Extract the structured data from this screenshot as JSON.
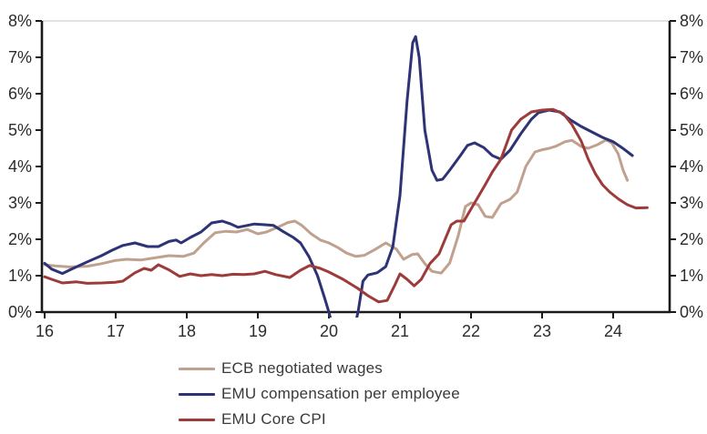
{
  "chart_data": {
    "type": "line",
    "title": "",
    "x_axis": {
      "ticks": [
        "16",
        "17",
        "18",
        "19",
        "20",
        "21",
        "22",
        "23",
        "24"
      ],
      "tick_values": [
        16,
        17,
        18,
        19,
        20,
        21,
        22,
        23,
        24
      ],
      "range": [
        16,
        24.85
      ]
    },
    "y_axis": {
      "labels": [
        "0%",
        "1%",
        "2%",
        "3%",
        "4%",
        "5%",
        "6%",
        "7%",
        "8%"
      ],
      "range": [
        0,
        8
      ],
      "step": 1,
      "unit": "%",
      "shown_on": "both-sides"
    },
    "grid": {
      "horizontal_top_line_only": true
    },
    "legend_position": "bottom-left",
    "series": [
      {
        "name": "ECB negotiated wages",
        "color": "#c0a18e",
        "points": [
          [
            16.0,
            1.3
          ],
          [
            16.15,
            1.27
          ],
          [
            16.35,
            1.24
          ],
          [
            16.6,
            1.26
          ],
          [
            16.8,
            1.33
          ],
          [
            17.0,
            1.42
          ],
          [
            17.15,
            1.45
          ],
          [
            17.35,
            1.43
          ],
          [
            17.55,
            1.49
          ],
          [
            17.75,
            1.55
          ],
          [
            17.95,
            1.53
          ],
          [
            18.1,
            1.62
          ],
          [
            18.25,
            1.92
          ],
          [
            18.4,
            2.18
          ],
          [
            18.55,
            2.22
          ],
          [
            18.7,
            2.2
          ],
          [
            18.85,
            2.27
          ],
          [
            19.0,
            2.15
          ],
          [
            19.12,
            2.2
          ],
          [
            19.28,
            2.33
          ],
          [
            19.42,
            2.46
          ],
          [
            19.52,
            2.5
          ],
          [
            19.62,
            2.38
          ],
          [
            19.75,
            2.15
          ],
          [
            19.88,
            1.98
          ],
          [
            20.0,
            1.9
          ],
          [
            20.12,
            1.78
          ],
          [
            20.25,
            1.62
          ],
          [
            20.38,
            1.53
          ],
          [
            20.5,
            1.56
          ],
          [
            20.65,
            1.72
          ],
          [
            20.8,
            1.9
          ],
          [
            20.95,
            1.73
          ],
          [
            21.05,
            1.45
          ],
          [
            21.17,
            1.58
          ],
          [
            21.25,
            1.6
          ],
          [
            21.35,
            1.33
          ],
          [
            21.45,
            1.12
          ],
          [
            21.58,
            1.07
          ],
          [
            21.7,
            1.35
          ],
          [
            21.82,
            2.1
          ],
          [
            21.92,
            2.9
          ],
          [
            22.0,
            3.0
          ],
          [
            22.1,
            2.95
          ],
          [
            22.2,
            2.63
          ],
          [
            22.3,
            2.6
          ],
          [
            22.42,
            2.98
          ],
          [
            22.55,
            3.1
          ],
          [
            22.65,
            3.3
          ],
          [
            22.77,
            4.0
          ],
          [
            22.9,
            4.4
          ],
          [
            23.0,
            4.46
          ],
          [
            23.1,
            4.5
          ],
          [
            23.2,
            4.56
          ],
          [
            23.32,
            4.68
          ],
          [
            23.42,
            4.72
          ],
          [
            23.55,
            4.55
          ],
          [
            23.65,
            4.5
          ],
          [
            23.78,
            4.6
          ],
          [
            23.9,
            4.73
          ],
          [
            23.98,
            4.65
          ],
          [
            24.07,
            4.35
          ],
          [
            24.14,
            3.9
          ],
          [
            24.2,
            3.62
          ]
        ]
      },
      {
        "name": "EMU compensation per employee",
        "color": "#2d3375",
        "points": [
          [
            16.0,
            1.34
          ],
          [
            16.1,
            1.18
          ],
          [
            16.25,
            1.06
          ],
          [
            16.4,
            1.2
          ],
          [
            16.6,
            1.38
          ],
          [
            16.8,
            1.55
          ],
          [
            16.95,
            1.7
          ],
          [
            17.1,
            1.83
          ],
          [
            17.27,
            1.9
          ],
          [
            17.45,
            1.8
          ],
          [
            17.6,
            1.8
          ],
          [
            17.75,
            1.94
          ],
          [
            17.85,
            1.98
          ],
          [
            17.92,
            1.9
          ],
          [
            18.05,
            2.05
          ],
          [
            18.2,
            2.2
          ],
          [
            18.35,
            2.45
          ],
          [
            18.5,
            2.5
          ],
          [
            18.62,
            2.42
          ],
          [
            18.72,
            2.33
          ],
          [
            18.85,
            2.38
          ],
          [
            18.95,
            2.42
          ],
          [
            19.1,
            2.4
          ],
          [
            19.22,
            2.38
          ],
          [
            19.35,
            2.22
          ],
          [
            19.5,
            2.05
          ],
          [
            19.6,
            1.9
          ],
          [
            19.72,
            1.52
          ],
          [
            19.84,
            1.0
          ],
          [
            19.93,
            0.45
          ],
          [
            20.0,
            0.0
          ],
          [
            20.1,
            -0.8
          ],
          [
            20.25,
            -1.2
          ],
          [
            20.35,
            -0.5
          ],
          [
            20.41,
            0.0
          ],
          [
            20.48,
            0.85
          ],
          [
            20.55,
            1.02
          ],
          [
            20.68,
            1.08
          ],
          [
            20.8,
            1.25
          ],
          [
            20.9,
            1.8
          ],
          [
            21.0,
            3.2
          ],
          [
            21.1,
            5.8
          ],
          [
            21.18,
            7.4
          ],
          [
            21.22,
            7.57
          ],
          [
            21.27,
            7.0
          ],
          [
            21.35,
            5.0
          ],
          [
            21.45,
            3.9
          ],
          [
            21.52,
            3.62
          ],
          [
            21.6,
            3.65
          ],
          [
            21.7,
            3.9
          ],
          [
            21.85,
            4.3
          ],
          [
            21.95,
            4.58
          ],
          [
            22.05,
            4.65
          ],
          [
            22.18,
            4.52
          ],
          [
            22.3,
            4.3
          ],
          [
            22.42,
            4.2
          ],
          [
            22.55,
            4.45
          ],
          [
            22.7,
            4.9
          ],
          [
            22.85,
            5.3
          ],
          [
            22.95,
            5.48
          ],
          [
            23.1,
            5.55
          ],
          [
            23.25,
            5.5
          ],
          [
            23.4,
            5.28
          ],
          [
            23.55,
            5.1
          ],
          [
            23.7,
            4.95
          ],
          [
            23.85,
            4.8
          ],
          [
            24.0,
            4.68
          ],
          [
            24.15,
            4.48
          ],
          [
            24.27,
            4.3
          ]
        ]
      },
      {
        "name": "EMU Core CPI",
        "color": "#9d3b3a",
        "points": [
          [
            16.0,
            0.97
          ],
          [
            16.1,
            0.9
          ],
          [
            16.25,
            0.8
          ],
          [
            16.45,
            0.83
          ],
          [
            16.6,
            0.79
          ],
          [
            16.8,
            0.8
          ],
          [
            17.0,
            0.82
          ],
          [
            17.1,
            0.85
          ],
          [
            17.27,
            1.08
          ],
          [
            17.4,
            1.2
          ],
          [
            17.5,
            1.15
          ],
          [
            17.6,
            1.3
          ],
          [
            17.75,
            1.16
          ],
          [
            17.9,
            0.98
          ],
          [
            18.05,
            1.05
          ],
          [
            18.2,
            1.0
          ],
          [
            18.35,
            1.03
          ],
          [
            18.5,
            1.0
          ],
          [
            18.65,
            1.04
          ],
          [
            18.8,
            1.03
          ],
          [
            18.95,
            1.05
          ],
          [
            19.1,
            1.12
          ],
          [
            19.25,
            1.03
          ],
          [
            19.45,
            0.95
          ],
          [
            19.6,
            1.15
          ],
          [
            19.73,
            1.28
          ],
          [
            19.88,
            1.2
          ],
          [
            20.0,
            1.1
          ],
          [
            20.2,
            0.9
          ],
          [
            20.4,
            0.66
          ],
          [
            20.55,
            0.45
          ],
          [
            20.7,
            0.28
          ],
          [
            20.82,
            0.32
          ],
          [
            20.93,
            0.75
          ],
          [
            21.0,
            1.05
          ],
          [
            21.1,
            0.9
          ],
          [
            21.2,
            0.72
          ],
          [
            21.3,
            0.9
          ],
          [
            21.42,
            1.33
          ],
          [
            21.55,
            1.6
          ],
          [
            21.72,
            2.4
          ],
          [
            21.8,
            2.5
          ],
          [
            21.9,
            2.5
          ],
          [
            22.05,
            3.0
          ],
          [
            22.2,
            3.5
          ],
          [
            22.3,
            3.85
          ],
          [
            22.42,
            4.2
          ],
          [
            22.57,
            5.0
          ],
          [
            22.7,
            5.3
          ],
          [
            22.85,
            5.5
          ],
          [
            23.0,
            5.55
          ],
          [
            23.15,
            5.57
          ],
          [
            23.3,
            5.45
          ],
          [
            23.42,
            5.15
          ],
          [
            23.55,
            4.7
          ],
          [
            23.65,
            4.2
          ],
          [
            23.75,
            3.8
          ],
          [
            23.85,
            3.5
          ],
          [
            23.95,
            3.3
          ],
          [
            24.08,
            3.1
          ],
          [
            24.2,
            2.95
          ],
          [
            24.32,
            2.86
          ],
          [
            24.48,
            2.87
          ]
        ]
      }
    ]
  },
  "colors": {
    "axis": "#1a1a1a",
    "gridline": "#d9d9d9",
    "tick_text": "#2b2b2b",
    "legend_text": "#3a3a3a",
    "background": "#ffffff"
  }
}
